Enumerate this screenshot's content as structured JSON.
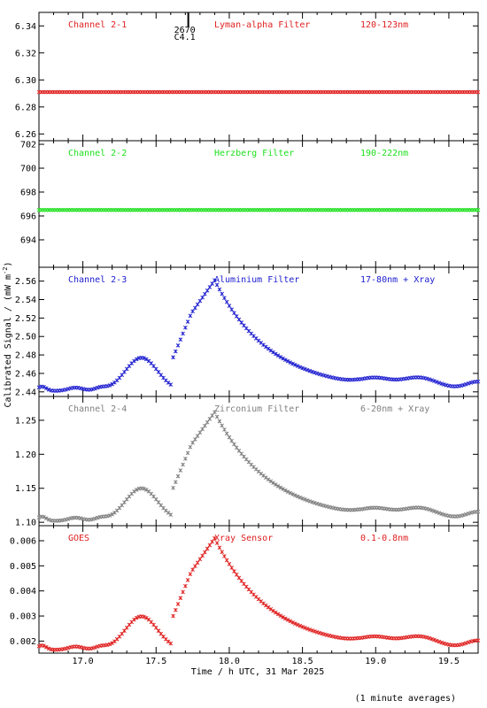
{
  "figure": {
    "ylabel": "Calibrated Signal / (mW m^-2)",
    "ylabel_prefix": "Calibrated Signal / (mW m",
    "ylabel_exp": "-2",
    "ylabel_suffix": ")",
    "xlabel": "Time / h UTC, 31 Mar 2025",
    "footnote": "(1 minute averages)",
    "event": {
      "x": 17.72,
      "label_top": "2670",
      "label_bottom": "C4.1"
    }
  },
  "chart_data": [
    {
      "type": "scatter",
      "channel": "Channel 2-1",
      "filter": "Lyman-alpha Filter",
      "band": "120-123nm",
      "color": "#e02020",
      "xlim": [
        16.7,
        19.7
      ],
      "ylim": [
        6.255,
        6.35
      ],
      "yticks": [
        6.26,
        6.28,
        6.3,
        6.32,
        6.34
      ],
      "ytick_labels": [
        "6.26",
        "6.28",
        "6.30",
        "6.32",
        "6.34"
      ],
      "profile": "flat",
      "baseline": 6.291,
      "peak": 6.291,
      "show_xlabels": false
    },
    {
      "type": "scatter",
      "channel": "Channel 2-2",
      "filter": "Herzberg Filter",
      "band": "190-222nm",
      "color": "#20e020",
      "xlim": [
        16.7,
        19.7
      ],
      "ylim": [
        691.7,
        702.3
      ],
      "yticks": [
        694,
        696,
        698,
        700,
        702
      ],
      "ytick_labels": [
        "694",
        "696",
        "698",
        "700",
        "702"
      ],
      "profile": "flat",
      "baseline": 696.5,
      "peak": 696.5,
      "show_xlabels": false
    },
    {
      "type": "scatter",
      "channel": "Channel 2-3",
      "filter": "Aluminium Filter",
      "band": "17-80nm + Xray",
      "color": "#2020d0",
      "xlim": [
        16.7,
        19.7
      ],
      "ylim": [
        2.435,
        2.575
      ],
      "yticks": [
        2.44,
        2.46,
        2.48,
        2.5,
        2.52,
        2.54,
        2.56
      ],
      "ytick_labels": [
        "2.44",
        "2.46",
        "2.48",
        "2.50",
        "2.52",
        "2.54",
        "2.56"
      ],
      "profile": "flare",
      "baseline": 2.441,
      "peak": 2.561,
      "show_xlabels": false
    },
    {
      "type": "scatter",
      "channel": "Channel 2-4",
      "filter": "Zirconium Filter",
      "band": "6-20nm + Xray",
      "color": "#808080",
      "xlim": [
        16.7,
        19.7
      ],
      "ylim": [
        1.095,
        1.285
      ],
      "yticks": [
        1.1,
        1.15,
        1.2,
        1.25
      ],
      "ytick_labels": [
        "1.10",
        "1.15",
        "1.20",
        "1.25"
      ],
      "profile": "flare",
      "baseline": 1.102,
      "peak": 1.262,
      "show_xlabels": false
    },
    {
      "type": "scatter",
      "channel": "GOES",
      "filter": "Xray Sensor",
      "band": "0.1-0.8nm",
      "color": "#e02020",
      "xlim": [
        16.7,
        19.7
      ],
      "ylim": [
        0.00152,
        0.0066
      ],
      "yticks": [
        0.002,
        0.003,
        0.004,
        0.005,
        0.006
      ],
      "ytick_labels": [
        "0.002",
        "0.003",
        "0.004",
        "0.005",
        "0.006"
      ],
      "profile": "flare",
      "baseline": 0.00165,
      "peak": 0.0061,
      "show_xlabels": true,
      "xticks": [
        17.0,
        17.5,
        18.0,
        18.5,
        19.0,
        19.5
      ],
      "xtick_labels": [
        "17.0",
        "17.5",
        "18.0",
        "18.5",
        "19.0",
        "19.5"
      ]
    }
  ]
}
